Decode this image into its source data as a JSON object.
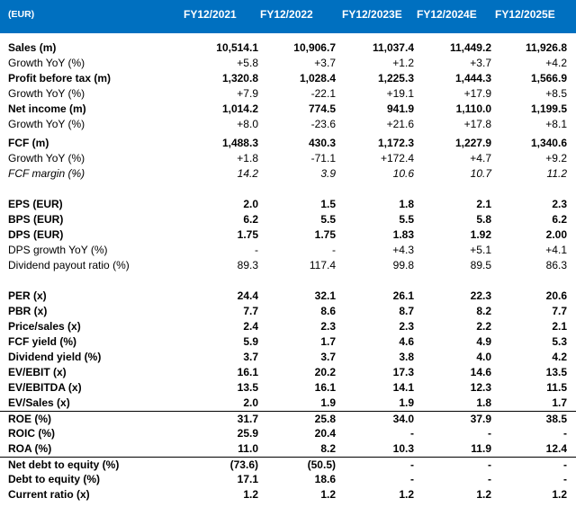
{
  "header": {
    "corner": "(EUR)",
    "columns": [
      "FY12/2021",
      "FY12/2022",
      "FY12/2023E",
      "FY12/2024E",
      "FY12/2025E"
    ]
  },
  "rows": [
    {
      "label": "Sales (m)",
      "bold": true,
      "italic": false,
      "values": [
        "10,514.1",
        "10,906.7",
        "11,037.4",
        "11,449.2",
        "11,926.8"
      ]
    },
    {
      "label": "Growth YoY (%)",
      "bold": false,
      "italic": false,
      "values": [
        "+5.8",
        "+3.7",
        "+1.2",
        "+3.7",
        "+4.2"
      ]
    },
    {
      "label": "Profit before tax (m)",
      "bold": true,
      "italic": false,
      "values": [
        "1,320.8",
        "1,028.4",
        "1,225.3",
        "1,444.3",
        "1,566.9"
      ]
    },
    {
      "label": "Growth YoY (%)",
      "bold": false,
      "italic": false,
      "values": [
        "+7.9",
        "-22.1",
        "+19.1",
        "+17.9",
        "+8.5"
      ]
    },
    {
      "label": "Net income (m)",
      "bold": true,
      "italic": false,
      "values": [
        "1,014.2",
        "774.5",
        "941.9",
        "1,110.0",
        "1,199.5"
      ]
    },
    {
      "label": "Growth YoY (%)",
      "bold": false,
      "italic": false,
      "values": [
        "+8.0",
        "-23.6",
        "+21.6",
        "+17.8",
        "+8.1"
      ]
    },
    {
      "label": "FCF (m)",
      "bold": true,
      "italic": false,
      "values": [
        "1,488.3",
        "430.3",
        "1,172.3",
        "1,227.9",
        "1,340.6"
      ]
    },
    {
      "label": "Growth YoY (%)",
      "bold": false,
      "italic": false,
      "values": [
        "+1.8",
        "-71.1",
        "+172.4",
        "+4.7",
        "+9.2"
      ]
    },
    {
      "label": "FCF margin (%)",
      "bold": false,
      "italic": true,
      "values": [
        "14.2",
        "3.9",
        "10.6",
        "10.7",
        "11.2"
      ]
    },
    {
      "label": "EPS (EUR)",
      "bold": true,
      "italic": false,
      "values": [
        "2.0",
        "1.5",
        "1.8",
        "2.1",
        "2.3"
      ]
    },
    {
      "label": "BPS (EUR)",
      "bold": true,
      "italic": false,
      "values": [
        "6.2",
        "5.5",
        "5.5",
        "5.8",
        "6.2"
      ]
    },
    {
      "label": "DPS (EUR)",
      "bold": true,
      "italic": false,
      "values": [
        "1.75",
        "1.75",
        "1.83",
        "1.92",
        "2.00"
      ]
    },
    {
      "label": "DPS growth YoY (%)",
      "bold": false,
      "italic": false,
      "values": [
        "-",
        "-",
        "+4.3",
        "+5.1",
        "+4.1"
      ]
    },
    {
      "label": "Dividend payout ratio (%)",
      "bold": false,
      "italic": false,
      "values": [
        "89.3",
        "117.4",
        "99.8",
        "89.5",
        "86.3"
      ]
    },
    {
      "label": "PER (x)",
      "bold": true,
      "italic": false,
      "values": [
        "24.4",
        "32.1",
        "26.1",
        "22.3",
        "20.6"
      ]
    },
    {
      "label": "PBR (x)",
      "bold": true,
      "italic": false,
      "values": [
        "7.7",
        "8.6",
        "8.7",
        "8.2",
        "7.7"
      ]
    },
    {
      "label": "Price/sales (x)",
      "bold": true,
      "italic": false,
      "values": [
        "2.4",
        "2.3",
        "2.3",
        "2.2",
        "2.1"
      ]
    },
    {
      "label": "FCF yield (%)",
      "bold": true,
      "italic": false,
      "values": [
        "5.9",
        "1.7",
        "4.6",
        "4.9",
        "5.3"
      ]
    },
    {
      "label": "Dividend yield (%)",
      "bold": true,
      "italic": false,
      "values": [
        "3.7",
        "3.7",
        "3.8",
        "4.0",
        "4.2"
      ]
    },
    {
      "label": "EV/EBIT (x)",
      "bold": true,
      "italic": false,
      "values": [
        "16.1",
        "20.2",
        "17.3",
        "14.6",
        "13.5"
      ]
    },
    {
      "label": "EV/EBITDA (x)",
      "bold": true,
      "italic": false,
      "values": [
        "13.5",
        "16.1",
        "14.1",
        "12.3",
        "11.5"
      ]
    },
    {
      "label": "EV/Sales (x)",
      "bold": true,
      "italic": false,
      "values": [
        "2.0",
        "1.9",
        "1.9",
        "1.8",
        "1.7"
      ]
    },
    {
      "label": "ROE (%)",
      "bold": true,
      "italic": false,
      "values": [
        "31.7",
        "25.8",
        "34.0",
        "37.9",
        "38.5"
      ]
    },
    {
      "label": "ROIC (%)",
      "bold": true,
      "italic": false,
      "values": [
        "25.9",
        "20.4",
        "-",
        "-",
        "-"
      ]
    },
    {
      "label": "ROA (%)",
      "bold": true,
      "italic": false,
      "values": [
        "11.0",
        "8.2",
        "10.3",
        "11.9",
        "12.4"
      ]
    },
    {
      "label": "Net debt to equity (%)",
      "bold": true,
      "italic": false,
      "values": [
        "(73.6)",
        "(50.5)",
        "-",
        "-",
        "-"
      ]
    },
    {
      "label": "Debt to equity (%)",
      "bold": true,
      "italic": false,
      "values": [
        "17.1",
        "18.6",
        "-",
        "-",
        "-"
      ]
    },
    {
      "label": "Current ratio (x)",
      "bold": true,
      "italic": false,
      "values": [
        "1.2",
        "1.2",
        "1.2",
        "1.2",
        "1.2"
      ]
    }
  ]
}
